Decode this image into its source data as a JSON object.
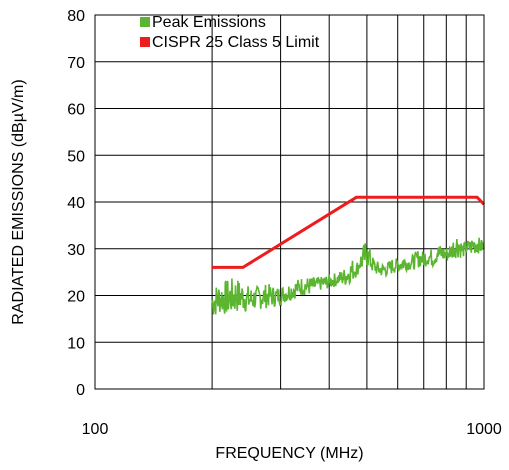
{
  "chart_data": {
    "type": "line",
    "xscale": "log",
    "xlim": [
      100,
      1000
    ],
    "ylim": [
      0,
      80
    ],
    "xlabel": "FREQUENCY (MHz)",
    "ylabel": "RADIATED EMISSIONS (dBµV/m)",
    "xticks": [
      {
        "value": 100,
        "label": "100"
      },
      {
        "value": 1000,
        "label": "1000"
      }
    ],
    "yticks": [
      0,
      10,
      20,
      30,
      40,
      50,
      60,
      70,
      80
    ],
    "grid": true,
    "legend_position": "top-left",
    "series": [
      {
        "name": "Peak Emissions",
        "color": "#5cb531",
        "x": [
          200,
          210,
          220,
          230,
          240,
          250,
          260,
          270,
          280,
          290,
          300,
          320,
          340,
          360,
          380,
          400,
          420,
          440,
          460,
          470,
          480,
          490,
          500,
          520,
          540,
          560,
          580,
          600,
          620,
          640,
          660,
          680,
          700,
          720,
          740,
          760,
          780,
          800,
          820,
          840,
          860,
          880,
          900,
          920,
          940,
          960,
          980,
          1000
        ],
        "y_min": [
          15,
          16,
          15.5,
          16,
          16.5,
          16,
          17,
          17,
          17.5,
          17.5,
          18,
          19,
          20,
          20,
          21,
          21.5,
          22,
          22,
          23,
          24,
          25,
          25,
          26,
          24.5,
          24,
          24,
          24.5,
          25,
          25,
          25.5,
          25.5,
          26,
          26,
          26.5,
          26,
          27,
          27,
          27,
          27.5,
          28,
          28,
          28,
          28.5,
          28.5,
          28.5,
          29,
          29,
          29
        ],
        "y_max": [
          22,
          23,
          23.5,
          24,
          23,
          22,
          22,
          22.5,
          22.5,
          22,
          22,
          23,
          24,
          24,
          24,
          24.5,
          25,
          26,
          28,
          27,
          29,
          31,
          32,
          28,
          27,
          27,
          28,
          28,
          29,
          28,
          29,
          30,
          29.5,
          30,
          30,
          31,
          31,
          30.5,
          31,
          33,
          34,
          31,
          32,
          32,
          33,
          33,
          32,
          32
        ]
      },
      {
        "name": "CISPR 25 Class 5 Limit",
        "color": "#ee1c1c",
        "x": [
          200,
          240,
          470,
          960,
          1000
        ],
        "y": [
          26,
          26,
          41,
          41,
          39.5
        ]
      }
    ]
  }
}
